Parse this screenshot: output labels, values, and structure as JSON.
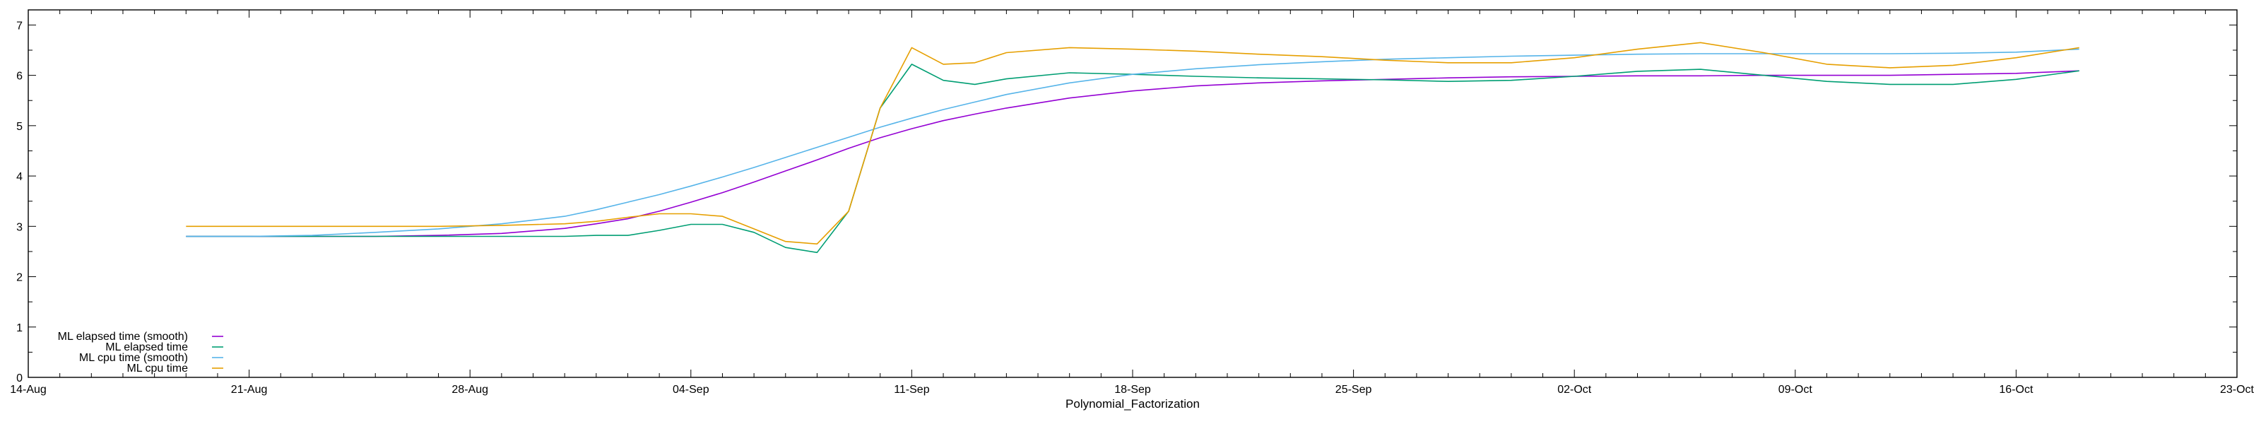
{
  "chart_data": {
    "type": "line",
    "xlabel": "Polynomial_Factorization",
    "ylabel": "",
    "xlim": [
      "2024-08-14",
      "2024-10-23"
    ],
    "ylim": [
      0,
      7.3
    ],
    "x_ticks": [
      "14-Aug",
      "21-Aug",
      "28-Aug",
      "04-Sep",
      "11-Sep",
      "18-Sep",
      "25-Sep",
      "02-Oct",
      "09-Oct",
      "16-Oct",
      "23-Oct"
    ],
    "y_ticks": [
      "0",
      "1",
      "2",
      "3",
      "4",
      "5",
      "6",
      "7"
    ],
    "grid": false,
    "legend_position": "bottom-left",
    "x": [
      "2024-08-19",
      "2024-08-21",
      "2024-08-23",
      "2024-08-25",
      "2024-08-27",
      "2024-08-29",
      "2024-08-31",
      "2024-09-01",
      "2024-09-02",
      "2024-09-03",
      "2024-09-04",
      "2024-09-05",
      "2024-09-06",
      "2024-09-07",
      "2024-09-08",
      "2024-09-09",
      "2024-09-10",
      "2024-09-11",
      "2024-09-12",
      "2024-09-13",
      "2024-09-14",
      "2024-09-16",
      "2024-09-18",
      "2024-09-20",
      "2024-09-22",
      "2024-09-24",
      "2024-09-26",
      "2024-09-28",
      "2024-09-30",
      "2024-10-02",
      "2024-10-04",
      "2024-10-06",
      "2024-10-08",
      "2024-10-10",
      "2024-10-12",
      "2024-10-14",
      "2024-10-16",
      "2024-10-18"
    ],
    "series": [
      {
        "name": "ML elapsed time (smooth)",
        "color": "#9400d3",
        "values": [
          2.8,
          2.8,
          2.8,
          2.8,
          2.82,
          2.86,
          2.96,
          3.05,
          3.15,
          3.3,
          3.48,
          3.67,
          3.88,
          4.1,
          4.32,
          4.55,
          4.76,
          4.94,
          5.1,
          5.23,
          5.35,
          5.55,
          5.69,
          5.79,
          5.85,
          5.89,
          5.92,
          5.95,
          5.97,
          5.98,
          5.99,
          5.99,
          6.0,
          6.0,
          6.0,
          6.02,
          6.04,
          6.09
        ]
      },
      {
        "name": "ML elapsed time",
        "color": "#009e73",
        "values": [
          2.8,
          2.8,
          2.8,
          2.8,
          2.8,
          2.8,
          2.8,
          2.82,
          2.82,
          2.92,
          3.04,
          3.04,
          2.88,
          2.58,
          2.48,
          3.3,
          5.35,
          6.22,
          5.9,
          5.82,
          5.93,
          6.05,
          6.02,
          5.98,
          5.95,
          5.93,
          5.91,
          5.88,
          5.9,
          5.98,
          6.08,
          6.12,
          6.0,
          5.88,
          5.82,
          5.82,
          5.92,
          6.09
        ]
      },
      {
        "name": "ML cpu time (smooth)",
        "color": "#56b4e9",
        "values": [
          2.8,
          2.8,
          2.82,
          2.88,
          2.95,
          3.05,
          3.2,
          3.33,
          3.48,
          3.63,
          3.8,
          3.98,
          4.17,
          4.37,
          4.57,
          4.77,
          4.97,
          5.15,
          5.32,
          5.47,
          5.62,
          5.85,
          6.02,
          6.13,
          6.21,
          6.27,
          6.32,
          6.35,
          6.38,
          6.4,
          6.42,
          6.43,
          6.43,
          6.43,
          6.43,
          6.44,
          6.46,
          6.52
        ]
      },
      {
        "name": "ML cpu time",
        "color": "#e69f00",
        "values": [
          3.0,
          3.0,
          3.0,
          3.0,
          3.0,
          3.02,
          3.05,
          3.1,
          3.18,
          3.25,
          3.25,
          3.2,
          2.95,
          2.7,
          2.65,
          3.3,
          5.35,
          6.55,
          6.22,
          6.25,
          6.45,
          6.55,
          6.52,
          6.48,
          6.42,
          6.37,
          6.3,
          6.25,
          6.25,
          6.35,
          6.52,
          6.65,
          6.45,
          6.22,
          6.15,
          6.2,
          6.35,
          6.55
        ]
      }
    ]
  }
}
